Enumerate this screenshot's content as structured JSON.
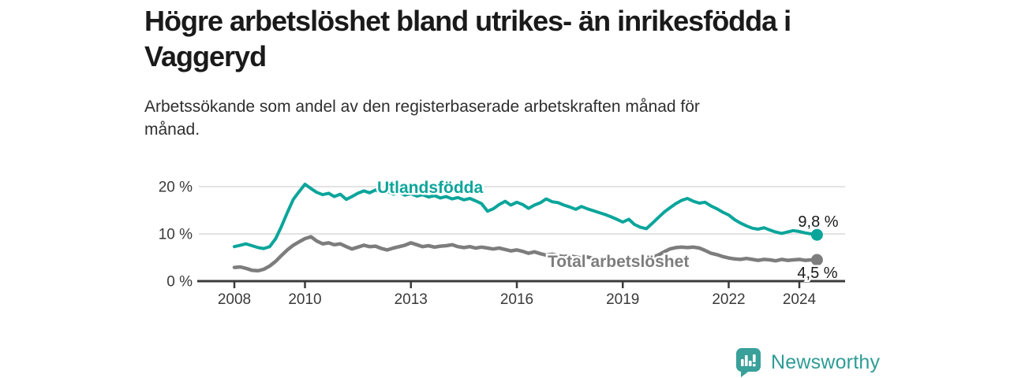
{
  "header": {
    "title": "Högre arbetslöshet bland utrikes- än inrikesfödda i Vaggeryd",
    "title_lines": [
      "Högre arbetslöshet bland utrikes- än inrikesfödda i",
      "Vaggeryd"
    ],
    "subtitle": "Arbetssökande som andel av den registerbaserade arbetskraften månad för månad.",
    "subtitle_lines": [
      "Arbetssökande som andel av den registerbaserade arbetskraften månad för",
      "månad."
    ]
  },
  "chart_data": {
    "type": "line",
    "title": "Högre arbetslöshet bland utrikes- än inrikesfödda i Vaggeryd",
    "xlabel": "",
    "ylabel": "",
    "unit": "%",
    "xlim": [
      2008,
      2024.5
    ],
    "ylim": [
      0,
      21
    ],
    "grid": "horizontal",
    "legend": "inline-labels",
    "x_ticks": [
      {
        "value": 2008,
        "label": "2008"
      },
      {
        "value": 2010,
        "label": "2010"
      },
      {
        "value": 2013,
        "label": "2013"
      },
      {
        "value": 2016,
        "label": "2016"
      },
      {
        "value": 2019,
        "label": "2019"
      },
      {
        "value": 2022,
        "label": "2022"
      },
      {
        "value": 2024,
        "label": "2024"
      }
    ],
    "y_ticks": [
      {
        "value": 0,
        "label": "0 %"
      },
      {
        "value": 10,
        "label": "10 %"
      },
      {
        "value": 20,
        "label": "20 %"
      }
    ],
    "x": [
      2008.0,
      2008.17,
      2008.33,
      2008.5,
      2008.67,
      2008.83,
      2009.0,
      2009.17,
      2009.33,
      2009.5,
      2009.67,
      2009.83,
      2010.0,
      2010.17,
      2010.33,
      2010.5,
      2010.67,
      2010.83,
      2011.0,
      2011.17,
      2011.33,
      2011.5,
      2011.67,
      2011.83,
      2012.0,
      2012.17,
      2012.33,
      2012.5,
      2012.67,
      2012.83,
      2013.0,
      2013.17,
      2013.33,
      2013.5,
      2013.67,
      2013.83,
      2014.0,
      2014.17,
      2014.33,
      2014.5,
      2014.67,
      2014.83,
      2015.0,
      2015.17,
      2015.33,
      2015.5,
      2015.67,
      2015.83,
      2016.0,
      2016.17,
      2016.33,
      2016.5,
      2016.67,
      2016.83,
      2017.0,
      2017.17,
      2017.33,
      2017.5,
      2017.67,
      2017.83,
      2018.0,
      2018.17,
      2018.33,
      2018.5,
      2018.67,
      2018.83,
      2019.0,
      2019.17,
      2019.33,
      2019.5,
      2019.67,
      2019.83,
      2020.0,
      2020.17,
      2020.33,
      2020.5,
      2020.67,
      2020.83,
      2021.0,
      2021.17,
      2021.33,
      2021.5,
      2021.67,
      2021.83,
      2022.0,
      2022.17,
      2022.33,
      2022.5,
      2022.67,
      2022.83,
      2023.0,
      2023.17,
      2023.33,
      2023.5,
      2023.67,
      2023.83,
      2024.0,
      2024.17,
      2024.33,
      2024.5
    ],
    "series": [
      {
        "name": "Utlandsfödda",
        "color": "#0ba59b",
        "end_label": "9,8 %",
        "end_value": 9.8,
        "values": [
          7.3,
          7.6,
          7.9,
          7.5,
          7.1,
          6.9,
          7.3,
          9.0,
          11.5,
          14.5,
          17.3,
          18.9,
          20.5,
          19.6,
          18.8,
          18.3,
          18.6,
          17.9,
          18.4,
          17.3,
          17.9,
          18.6,
          19.1,
          18.7,
          19.3,
          18.7,
          19.0,
          18.4,
          18.8,
          18.2,
          18.5,
          18.0,
          18.3,
          17.8,
          18.1,
          17.6,
          17.9,
          17.4,
          17.7,
          17.2,
          17.5,
          17.0,
          16.4,
          14.8,
          15.3,
          16.2,
          16.9,
          16.1,
          16.7,
          16.2,
          15.4,
          16.1,
          16.6,
          17.4,
          16.8,
          16.6,
          16.1,
          15.7,
          15.2,
          15.8,
          15.3,
          14.9,
          14.5,
          14.1,
          13.6,
          13.1,
          12.5,
          13.1,
          12.0,
          11.4,
          11.1,
          12.2,
          13.4,
          14.6,
          15.5,
          16.4,
          17.1,
          17.5,
          16.9,
          16.5,
          16.7,
          15.9,
          15.3,
          14.6,
          14.0,
          13.0,
          12.3,
          11.7,
          11.2,
          11.0,
          11.3,
          10.8,
          10.4,
          10.1,
          10.4,
          10.7,
          10.5,
          10.2,
          10.0,
          9.8
        ]
      },
      {
        "name": "Total arbetslöshet",
        "color": "#7d7d7d",
        "end_label": "4,5 %",
        "end_value": 4.5,
        "values": [
          2.9,
          3.0,
          2.7,
          2.3,
          2.2,
          2.5,
          3.2,
          4.2,
          5.4,
          6.6,
          7.6,
          8.3,
          9.0,
          9.4,
          8.5,
          7.9,
          8.1,
          7.7,
          7.9,
          7.3,
          6.8,
          7.2,
          7.6,
          7.3,
          7.4,
          6.9,
          6.6,
          7.0,
          7.3,
          7.6,
          8.1,
          7.7,
          7.3,
          7.5,
          7.2,
          7.4,
          7.5,
          7.7,
          7.3,
          7.1,
          7.3,
          7.0,
          7.2,
          7.0,
          6.8,
          7.0,
          6.7,
          6.4,
          6.6,
          6.3,
          5.9,
          6.2,
          5.8,
          5.5,
          5.7,
          5.4,
          5.2,
          5.4,
          5.1,
          4.9,
          5.1,
          4.8,
          4.6,
          4.8,
          4.5,
          4.4,
          4.6,
          4.4,
          4.3,
          4.5,
          4.7,
          5.0,
          5.5,
          6.2,
          6.8,
          7.1,
          7.2,
          7.1,
          7.2,
          7.0,
          6.5,
          5.9,
          5.6,
          5.2,
          4.9,
          4.7,
          4.6,
          4.8,
          4.6,
          4.4,
          4.6,
          4.5,
          4.3,
          4.6,
          4.4,
          4.5,
          4.6,
          4.4,
          4.5,
          4.5
        ]
      }
    ]
  },
  "footer": {
    "brand": "Newsworthy",
    "logo_icon": "bar-chart-speech-bubble-icon"
  },
  "colors": {
    "background": "#ffffff",
    "title_text": "#1a1a1a",
    "subtitle_text": "#2f2f2f",
    "axis_text": "#3a3a3a",
    "axis_line": "#3b3b3b",
    "gridline": "#dadada",
    "series_foreign_born": "#0ba59b",
    "series_total": "#7d7d7d",
    "brand_teal": "#39a09a",
    "brand_text": "#2f9c96"
  }
}
